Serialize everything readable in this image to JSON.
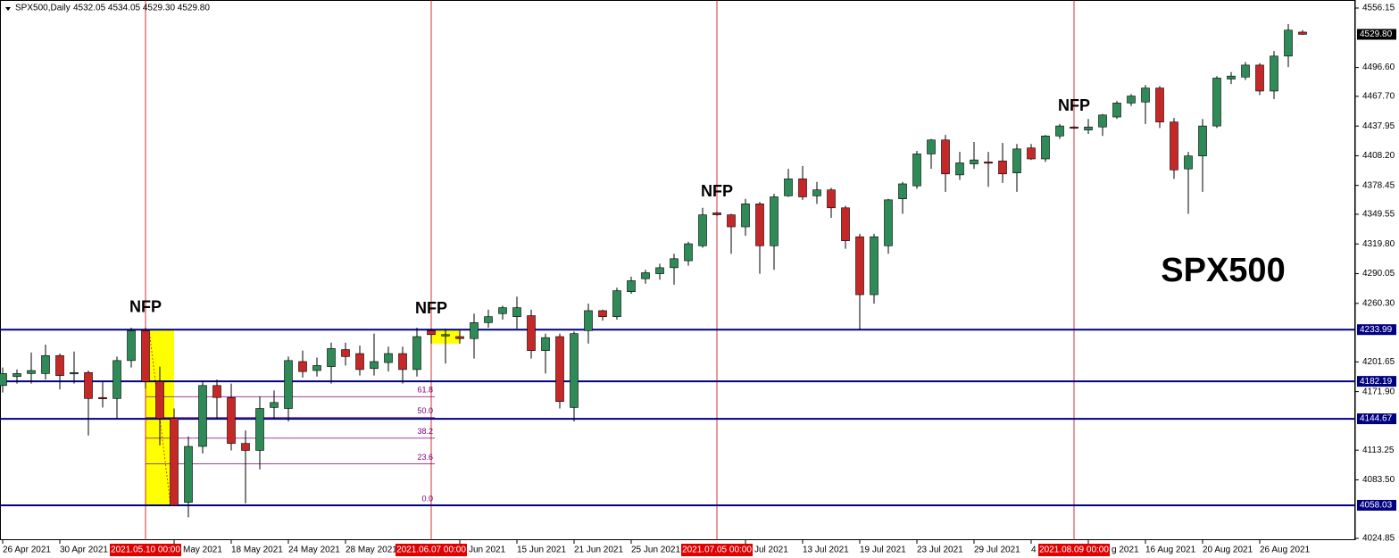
{
  "chart_data": {
    "type": "candlestick",
    "title": "SPX500,Daily",
    "header_ohlc": "4532.05 4534.05 4529.30 4529.80",
    "label": "SPX500",
    "categories": [
      "26 Apr 2021",
      null,
      null,
      null,
      "30 Apr 2021",
      null,
      null,
      null,
      null,
      null,
      "2021.05.10 00:00",
      null,
      "May 2021",
      null,
      null,
      null,
      "18 May 2021",
      null,
      null,
      null,
      "24 May 2021",
      null,
      null,
      null,
      "28 May 2021",
      null,
      null,
      null,
      null,
      null,
      "2021.06.07 00:00",
      null,
      "Jun 2021",
      null,
      null,
      null,
      "15 Jun 2021",
      null,
      null,
      null,
      "21 Jun 2021",
      null,
      null,
      null,
      "25 Jun 2021",
      null,
      null,
      null,
      null,
      null,
      "2021.07.05 00:00",
      null,
      "Jul 2021",
      null,
      null,
      null,
      "13 Jul 2021",
      null,
      null,
      null,
      "19 Jul 2021",
      null,
      null,
      null,
      "23 Jul 2021",
      null,
      null,
      null,
      "29 Jul 2021",
      null,
      null,
      null,
      "4",
      null,
      null,
      "2021.08.09 00:00",
      "g 2021",
      null,
      null,
      null,
      "16 Aug 2021",
      null,
      null,
      null,
      "20 Aug 2021",
      null,
      null,
      null,
      "26 Aug 2021",
      null,
      null,
      null
    ],
    "open": [
      4178,
      4187,
      4190,
      4190,
      4208,
      4190,
      4191,
      4166,
      4165,
      4203,
      4233,
      4182,
      4145,
      4061,
      4117,
      4178,
      4166,
      4120,
      4113,
      4156,
      4155,
      4202,
      4193,
      4197,
      4214,
      4210,
      4195,
      4201,
      4210,
      4194,
      4233,
      4228,
      4227,
      4225,
      4241,
      4250,
      4247,
      4248,
      4213,
      4227,
      4156,
      4233,
      4253,
      4247,
      4272,
      4285,
      4290,
      4296,
      4303,
      4318,
      4351,
      4349,
      4337,
      4360,
      4318,
      4368,
      4385,
      4368,
      4374,
      4356,
      4327,
      4269,
      4318,
      4365,
      4378,
      4410,
      4424,
      4389,
      4400,
      4402,
      4403,
      4391,
      4416,
      4405,
      4428,
      4437,
      4434,
      4437,
      4447,
      4461,
      4462,
      4476,
      4442,
      4395,
      4408,
      4438,
      4485,
      4487,
      4499,
      4473,
      4508,
      4532.05
    ],
    "high": [
      4196,
      4194,
      4211,
      4219,
      4210,
      4212,
      4193,
      4182,
      4207,
      4236,
      4236,
      4197,
      4155,
      4127,
      4183,
      4184,
      4180,
      4133,
      4167,
      4173,
      4207,
      4213,
      4206,
      4221,
      4221,
      4218,
      4230,
      4217,
      4217,
      4236,
      4235,
      4235,
      4233,
      4250,
      4254,
      4258,
      4267,
      4254,
      4230,
      4230,
      4232,
      4260,
      4254,
      4276,
      4287,
      4294,
      4300,
      4310,
      4322,
      4356,
      4352,
      4350,
      4365,
      4362,
      4370,
      4395,
      4398,
      4382,
      4376,
      4358,
      4330,
      4330,
      4365,
      4382,
      4413,
      4425,
      4429,
      4412,
      4422,
      4412,
      4421,
      4420,
      4420,
      4429,
      4440,
      4438,
      4445,
      4450,
      4463,
      4470,
      4479,
      4478,
      4446,
      4412,
      4445,
      4488,
      4492,
      4502,
      4501,
      4513,
      4540,
      4534.05
    ],
    "low": [
      4171,
      4180,
      4180,
      4184,
      4174,
      4180,
      4128,
      4156,
      4145,
      4196,
      4175,
      4118,
      4058,
      4046,
      4110,
      4144,
      4113,
      4060,
      4094,
      4145,
      4142,
      4186,
      4187,
      4180,
      4198,
      4188,
      4188,
      4192,
      4180,
      4187,
      4220,
      4200,
      4220,
      4205,
      4236,
      4244,
      4235,
      4205,
      4190,
      4155,
      4142,
      4220,
      4243,
      4244,
      4270,
      4280,
      4284,
      4279,
      4298,
      4316,
      4348,
      4310,
      4328,
      4290,
      4294,
      4367,
      4364,
      4360,
      4346,
      4315,
      4234,
      4260,
      4310,
      4350,
      4375,
      4395,
      4372,
      4384,
      4395,
      4377,
      4381,
      4372,
      4404,
      4402,
      4425,
      4435,
      4430,
      4428,
      4445,
      4458,
      4440,
      4436,
      4385,
      4350,
      4372,
      4436,
      4480,
      4484,
      4469,
      4465,
      4497,
      4529.3
    ],
    "close": [
      4190,
      4190,
      4193,
      4208,
      4188,
      4191,
      4165,
      4165,
      4203,
      4233,
      4182,
      4145,
      4058,
      4117,
      4178,
      4166,
      4120,
      4113,
      4155,
      4161,
      4203,
      4192,
      4198,
      4215,
      4207,
      4194,
      4202,
      4210,
      4194,
      4227,
      4229,
      4229,
      4225,
      4241,
      4247,
      4256,
      4256,
      4213,
      4226,
      4162,
      4230,
      4253,
      4247,
      4273,
      4283,
      4291,
      4296,
      4305,
      4320,
      4349,
      4349,
      4337,
      4360,
      4318,
      4367,
      4385,
      4367,
      4374,
      4356,
      4323,
      4269,
      4327,
      4364,
      4380,
      4410,
      4424,
      4390,
      4401,
      4404,
      4401,
      4390,
      4415,
      4405,
      4428,
      4438,
      4436,
      4437,
      4449,
      4461,
      4468,
      4476,
      4442,
      4394,
      4408,
      4438,
      4486,
      4488,
      4499,
      4473,
      4508,
      4534,
      4529.8
    ],
    "up_color": "#2e8b57",
    "down_color": "#c62828",
    "ylim": [
      4023.1,
      4564.2
    ],
    "yticks": [
      4556.15,
      {
        "value": 4496.6,
        "label": "4496.60"
      },
      {
        "value": 4467.7,
        "label": "4467.70"
      },
      4437.95,
      {
        "value": 4408.2,
        "label": "4408.20"
      },
      4378.45,
      4349.55,
      {
        "value": 4319.8,
        "label": "4319.80"
      },
      4290.05,
      {
        "value": 4260.3,
        "label": "4260.30"
      },
      4201.65,
      {
        "value": 4171.9,
        "label": "4171.90"
      },
      4113.25,
      {
        "value": 4083.5,
        "label": "4083.50"
      },
      4024.85
    ],
    "levels": [
      4233.99,
      4182.19,
      4144.67,
      4058.03
    ],
    "level_color": "#000080",
    "last_price": {
      "value": 4529.8,
      "label": "4529.80"
    },
    "events": [
      {
        "label": "NFP",
        "date": "2021.05.10 00:00"
      },
      {
        "label": "NFP",
        "date": "2021.06.07 00:00"
      },
      {
        "label": "NFP",
        "date": "2021.07.05 00:00"
      },
      {
        "label": "NFP",
        "date": "2021.08.09 00:00"
      }
    ],
    "zones": [
      {
        "date": "2021.05.10 00:00",
        "top": 4233.99,
        "bottom": 4058.03
      },
      {
        "date": "2021.06.07 00:00",
        "top": 4233.99,
        "bottom": 4220
      }
    ],
    "fibonacci": {
      "from": "2021.05.10 00:00",
      "to": "2021.06.07 00:00",
      "high": 4233.99,
      "low": 4058.03,
      "levels": [
        61.8,
        {
          "value": 50,
          "label": "50.0"
        },
        38.2,
        23.6,
        {
          "value": 0,
          "label": "0.0"
        }
      ]
    }
  }
}
